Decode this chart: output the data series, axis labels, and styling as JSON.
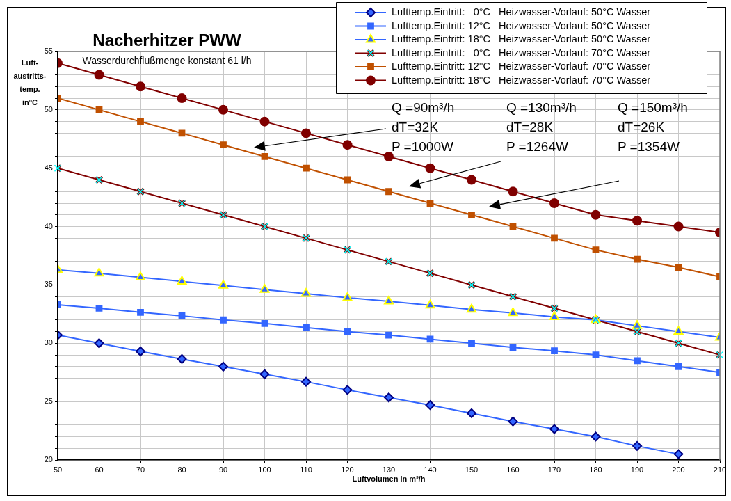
{
  "chart_data": {
    "type": "line",
    "title": "Nacherhitzer PWW",
    "subtitle": "Wasserdurchflußmenge konstant 61 l/h",
    "xlabel": "Luftvolumen in m³/h",
    "ylabel": "Luft-\naustritts-\ntemp.\nin°C",
    "x": [
      50,
      60,
      70,
      80,
      90,
      100,
      110,
      120,
      130,
      140,
      150,
      160,
      170,
      180,
      190,
      200,
      210
    ],
    "xlim": [
      50,
      210
    ],
    "xticks": [
      50,
      60,
      70,
      80,
      90,
      100,
      110,
      120,
      130,
      140,
      150,
      160,
      170,
      180,
      190,
      200,
      210
    ],
    "ylim": [
      20,
      55
    ],
    "yticks": [
      20,
      {
        "value": 21,
        "label": null
      },
      {
        "value": 22,
        "label": null
      },
      {
        "value": 23,
        "label": null
      },
      {
        "value": 24,
        "label": null
      },
      25,
      {
        "value": 26,
        "label": null
      },
      {
        "value": 27,
        "label": null
      },
      {
        "value": 28,
        "label": null
      },
      {
        "value": 29,
        "label": null
      },
      30,
      {
        "value": 31,
        "label": null
      },
      {
        "value": 32,
        "label": null
      },
      {
        "value": 33,
        "label": null
      },
      {
        "value": 34,
        "label": null
      },
      35,
      {
        "value": 36,
        "label": null
      },
      {
        "value": 37,
        "label": null
      },
      {
        "value": 38,
        "label": null
      },
      {
        "value": 39,
        "label": null
      },
      40,
      {
        "value": 41,
        "label": null
      },
      {
        "value": 42,
        "label": null
      },
      {
        "value": 43,
        "label": null
      },
      {
        "value": 44,
        "label": null
      },
      45,
      {
        "value": 46,
        "label": null
      },
      {
        "value": 47,
        "label": null
      },
      {
        "value": 48,
        "label": null
      },
      {
        "value": 49,
        "label": null
      },
      50,
      {
        "value": 51,
        "label": null
      },
      {
        "value": 52,
        "label": null
      },
      {
        "value": 53,
        "label": null
      },
      {
        "value": 54,
        "label": null
      },
      55
    ],
    "grid": true,
    "legend": "top right",
    "line_style": "solid",
    "series": [
      {
        "name": "Lufttemp.Eintritt:   0°C   Heizwasser-Vorlauf: 50°C Wasser",
        "color": "#3366ff",
        "marker": "diamond",
        "values": [
          30.7,
          30.0,
          29.3,
          28.65,
          28.0,
          27.35,
          26.7,
          26.0,
          25.35,
          24.7,
          24.0,
          23.3,
          22.65,
          22.0,
          21.2,
          20.5,
          null
        ]
      },
      {
        "name": "Lufttemp.Eintritt: 12°C   Heizwasser-Vorlauf: 50°C Wasser",
        "color": "#3366ff",
        "marker": "square",
        "values": [
          33.3,
          33.0,
          32.65,
          32.35,
          32.0,
          31.7,
          31.35,
          31.0,
          30.7,
          30.35,
          30.0,
          29.65,
          29.35,
          29.0,
          28.5,
          28.0,
          27.5
        ]
      },
      {
        "name": "Lufttemp.Eintritt: 18°C   Heizwasser-Vorlauf: 50°C Wasser",
        "color": "#3366ff",
        "marker": "triangle",
        "values": [
          36.3,
          36.0,
          35.65,
          35.3,
          34.95,
          34.6,
          34.25,
          33.9,
          33.6,
          33.25,
          32.9,
          32.6,
          32.25,
          32.0,
          31.5,
          31.0,
          30.5
        ]
      },
      {
        "name": "Lufttemp.Eintritt:   0°C   Heizwasser-Vorlauf: 70°C Wasser",
        "color": "#800000",
        "marker": "cross",
        "values": [
          45,
          44,
          43,
          42,
          41,
          40,
          39,
          38,
          37,
          36,
          35,
          34,
          33,
          32,
          31,
          30,
          29
        ]
      },
      {
        "name": "Lufttemp.Eintritt: 12°C   Heizwasser-Vorlauf: 70°C Wasser",
        "color": "#c05000",
        "marker": "square",
        "values": [
          51,
          50,
          49,
          48,
          47,
          46,
          45,
          44,
          43,
          42,
          41,
          40,
          39,
          38,
          37.2,
          36.5,
          35.7
        ]
      },
      {
        "name": "Lufttemp.Eintritt: 18°C   Heizwasser-Vorlauf: 70°C Wasser",
        "color": "#800000",
        "marker": "circle",
        "values": [
          54,
          53,
          52,
          51,
          50,
          49,
          48,
          47,
          46,
          45,
          44,
          43,
          42,
          41,
          40.5,
          40,
          39.5
        ]
      }
    ],
    "annotations": [
      "Q =90m³/h\ndT=32K\nP =1000W",
      "Q =130m³/h\ndT=28K\nP =1264W",
      "Q =150m³/h\ndT=26K\nP =1354W"
    ]
  }
}
